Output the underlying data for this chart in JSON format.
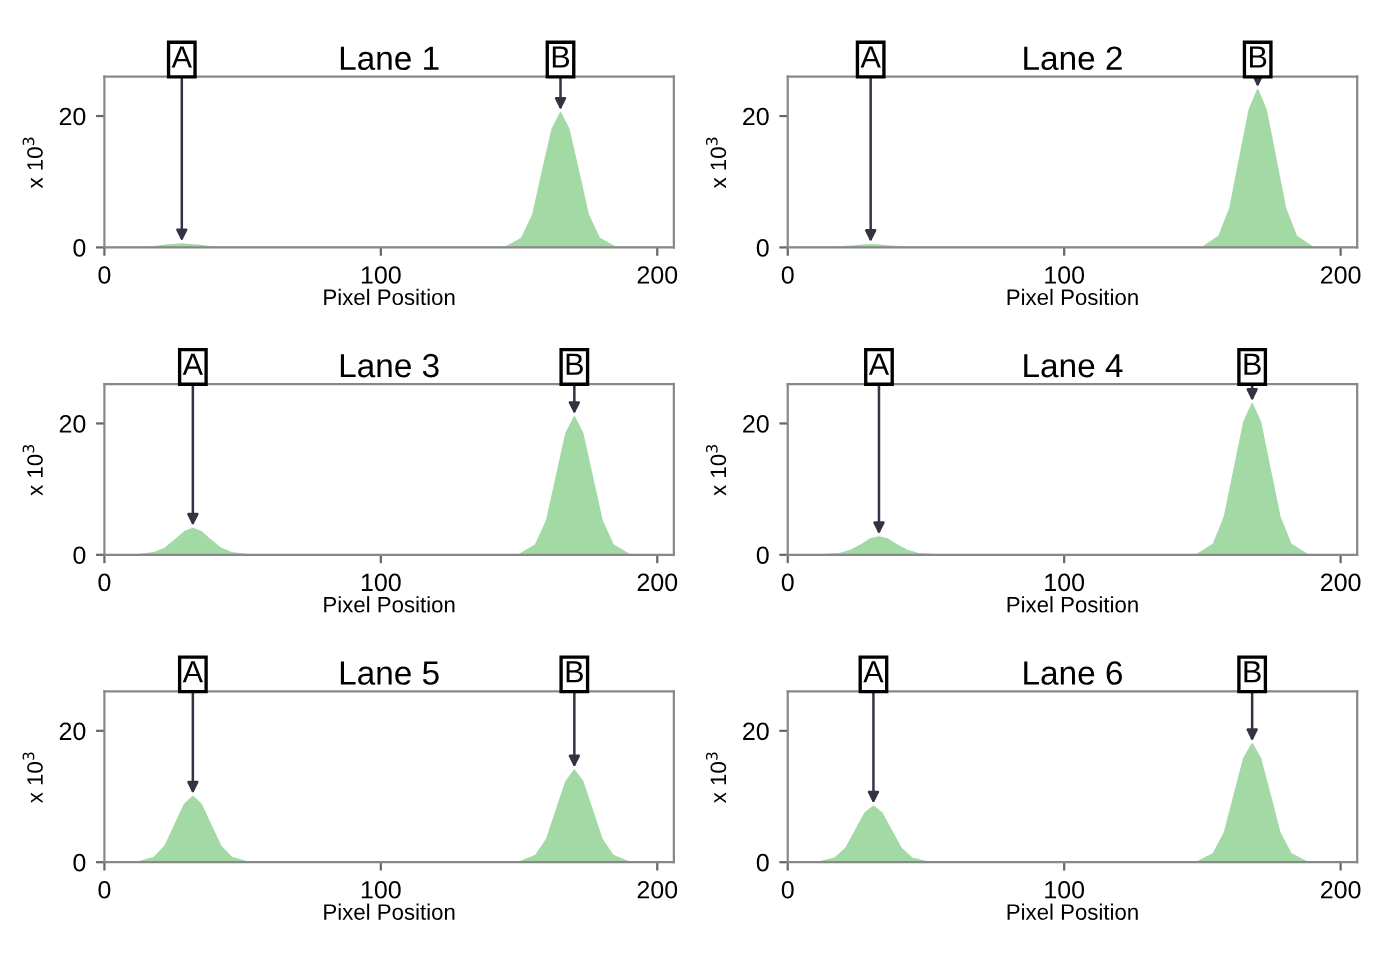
{
  "chart_data": [
    {
      "type": "area",
      "title": "Lane 1",
      "xlabel": "Pixel Position",
      "ylabel": "x 10$^{3}$",
      "xlim": [
        0,
        206
      ],
      "ylim": [
        0,
        26
      ],
      "xticks": [
        0,
        100,
        200
      ],
      "yticks": [
        0,
        20
      ],
      "grid": false,
      "series": [
        {
          "color": "#a3d9a5",
          "x": [
            0,
            8,
            14,
            18,
            22,
            25,
            28,
            31,
            34,
            38,
            42,
            48,
            145,
            151,
            155,
            159,
            162,
            165,
            168,
            171,
            175,
            179,
            185,
            205
          ],
          "values": [
            0,
            0,
            0,
            0.1,
            0.3,
            0.4,
            0.5,
            0.4,
            0.3,
            0.1,
            0,
            0,
            0,
            1.4,
            5,
            12.5,
            18,
            20.5,
            18,
            12.5,
            5,
            1.4,
            0,
            0
          ]
        }
      ],
      "annotations": [
        {
          "text": "A",
          "x": 28,
          "y": 0.5
        },
        {
          "text": "B",
          "x": 165,
          "y": 20.5
        }
      ]
    },
    {
      "type": "area",
      "title": "Lane 2",
      "xlabel": "Pixel Position",
      "ylabel": "x 10$^{3}$",
      "xlim": [
        0,
        206
      ],
      "ylim": [
        0,
        26
      ],
      "xticks": [
        0,
        100,
        200
      ],
      "yticks": [
        0,
        20
      ],
      "grid": false,
      "series": [
        {
          "color": "#a3d9a5",
          "x": [
            0,
            10,
            16,
            20,
            24,
            27,
            30,
            33,
            36,
            40,
            44,
            50,
            150,
            156,
            160,
            164,
            167,
            170,
            173,
            176,
            180,
            184,
            190,
            205
          ],
          "values": [
            0,
            0,
            0,
            0.1,
            0.2,
            0.3,
            0.4,
            0.3,
            0.2,
            0.1,
            0,
            0,
            0,
            1.7,
            6,
            14.6,
            21,
            24,
            21,
            14.6,
            6,
            1.7,
            0,
            0
          ]
        }
      ],
      "annotations": [
        {
          "text": "A",
          "x": 30,
          "y": 0.4
        },
        {
          "text": "B",
          "x": 170,
          "y": 24
        }
      ]
    },
    {
      "type": "area",
      "title": "Lane 3",
      "xlabel": "Pixel Position",
      "ylabel": "x 10$^{3}$",
      "xlim": [
        0,
        206
      ],
      "ylim": [
        0,
        26
      ],
      "xticks": [
        0,
        100,
        200
      ],
      "yticks": [
        0,
        20
      ],
      "grid": false,
      "series": [
        {
          "color": "#a3d9a5",
          "x": [
            0,
            12,
            18,
            22,
            26,
            29,
            32,
            35,
            38,
            42,
            46,
            52,
            150,
            156,
            160,
            164,
            167,
            170,
            173,
            176,
            180,
            184,
            190,
            205
          ],
          "values": [
            0,
            0,
            0.3,
            1,
            2.4,
            3.5,
            4,
            3.5,
            2.4,
            1,
            0.3,
            0,
            0,
            1.5,
            5.2,
            12.8,
            18.5,
            21,
            18.5,
            12.8,
            5.2,
            1.5,
            0,
            0
          ]
        }
      ],
      "annotations": [
        {
          "text": "A",
          "x": 32,
          "y": 4
        },
        {
          "text": "B",
          "x": 170,
          "y": 21
        }
      ]
    },
    {
      "type": "area",
      "title": "Lane 4",
      "xlabel": "Pixel Position",
      "ylabel": "x 10$^{3}$",
      "xlim": [
        0,
        206
      ],
      "ylim": [
        0,
        26
      ],
      "xticks": [
        0,
        100,
        200
      ],
      "yticks": [
        0,
        20
      ],
      "grid": false,
      "series": [
        {
          "color": "#a3d9a5",
          "x": [
            0,
            13,
            19,
            23,
            27,
            30,
            33,
            36,
            39,
            43,
            47,
            53,
            148,
            154,
            158,
            162,
            165,
            168,
            171,
            174,
            178,
            182,
            188,
            205
          ],
          "values": [
            0,
            0,
            0.2,
            0.7,
            1.6,
            2.4,
            2.7,
            2.4,
            1.6,
            0.7,
            0.2,
            0,
            0,
            1.6,
            5.8,
            14,
            20.2,
            23,
            20.2,
            14,
            5.8,
            1.6,
            0,
            0
          ]
        }
      ],
      "annotations": [
        {
          "text": "A",
          "x": 33,
          "y": 2.7
        },
        {
          "text": "B",
          "x": 168,
          "y": 23
        }
      ]
    },
    {
      "type": "area",
      "title": "Lane 5",
      "xlabel": "Pixel Position",
      "ylabel": "x 10$^{3}$",
      "xlim": [
        0,
        206
      ],
      "ylim": [
        0,
        26
      ],
      "xticks": [
        0,
        100,
        200
      ],
      "yticks": [
        0,
        20
      ],
      "grid": false,
      "series": [
        {
          "color": "#a3d9a5",
          "x": [
            0,
            12,
            18,
            22,
            26,
            29,
            32,
            35,
            38,
            42,
            46,
            52,
            150,
            156,
            160,
            164,
            167,
            170,
            173,
            176,
            180,
            184,
            190,
            205
          ],
          "values": [
            0,
            0,
            0.7,
            2.5,
            6.1,
            8.8,
            10,
            8.8,
            6.1,
            2.5,
            0.7,
            0,
            0,
            1,
            3.5,
            8.5,
            12.3,
            14,
            12.3,
            8.5,
            3.5,
            1,
            0,
            0
          ]
        }
      ],
      "annotations": [
        {
          "text": "A",
          "x": 32,
          "y": 10
        },
        {
          "text": "B",
          "x": 170,
          "y": 14
        }
      ]
    },
    {
      "type": "area",
      "title": "Lane 6",
      "xlabel": "Pixel Position",
      "ylabel": "x 10$^{3}$",
      "xlim": [
        0,
        206
      ],
      "ylim": [
        0,
        26
      ],
      "xticks": [
        0,
        100,
        200
      ],
      "yticks": [
        0,
        20
      ],
      "grid": false,
      "series": [
        {
          "color": "#a3d9a5",
          "x": [
            0,
            11,
            17,
            21,
            25,
            28,
            31,
            34,
            37,
            41,
            45,
            51,
            148,
            154,
            158,
            162,
            165,
            168,
            171,
            174,
            178,
            182,
            188,
            205
          ],
          "values": [
            0,
            0,
            0.6,
            2.1,
            5.2,
            7.5,
            8.5,
            7.5,
            5.2,
            2.1,
            0.6,
            0,
            0,
            1.3,
            4.5,
            11,
            15.8,
            18,
            15.8,
            11,
            4.5,
            1.3,
            0,
            0
          ]
        }
      ],
      "annotations": [
        {
          "text": "A",
          "x": 31,
          "y": 8.5
        },
        {
          "text": "B",
          "x": 168,
          "y": 18
        }
      ]
    }
  ]
}
